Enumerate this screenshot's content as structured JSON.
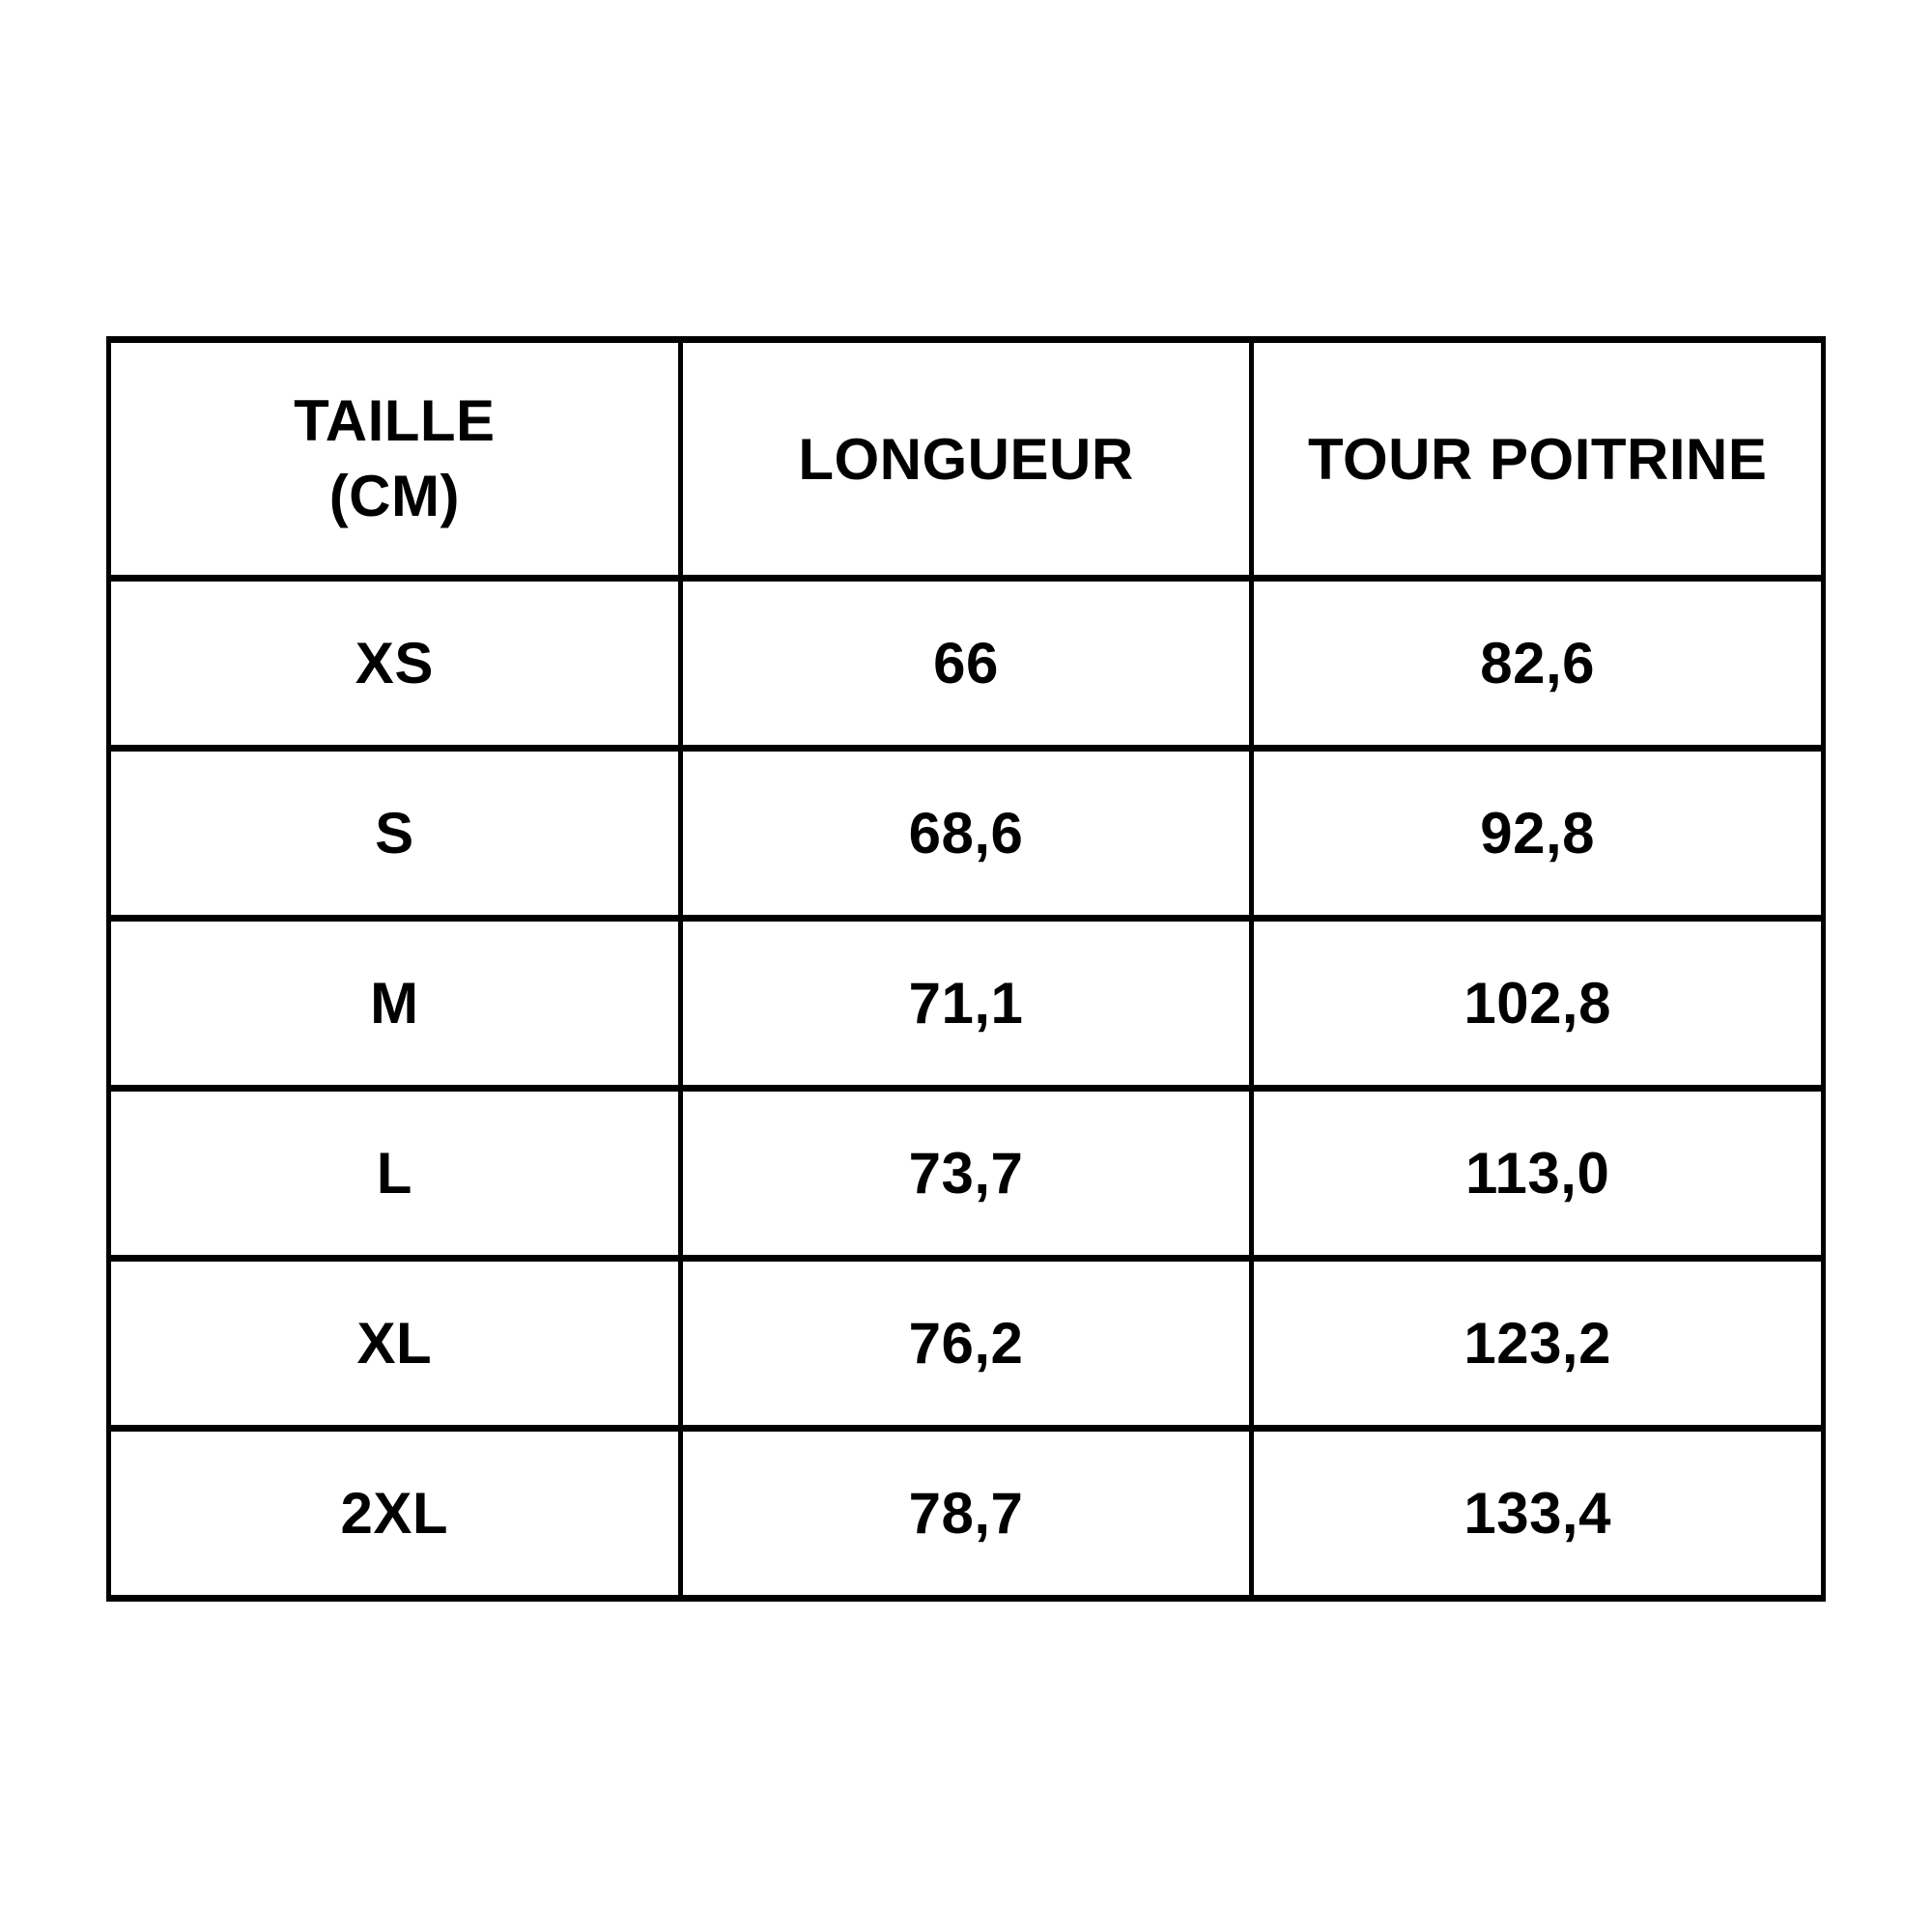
{
  "page": {
    "background_color": "#ffffff"
  },
  "colors": {
    "text": "#000000",
    "border": "#000000",
    "cell_background": "#ffffff"
  },
  "table": {
    "headers": [
      {
        "line1": "TAILLE",
        "line2": "(CM)"
      },
      {
        "line1": "LONGUEUR"
      },
      {
        "line1": "TOUR POITRINE"
      }
    ],
    "rows": [
      {
        "taille": "XS",
        "longueur": "66",
        "tour_poitrine": "82,6"
      },
      {
        "taille": "S",
        "longueur": "68,6",
        "tour_poitrine": "92,8"
      },
      {
        "taille": "M",
        "longueur": "71,1",
        "tour_poitrine": "102,8"
      },
      {
        "taille": "L",
        "longueur": "73,7",
        "tour_poitrine": "113,0"
      },
      {
        "taille": "XL",
        "longueur": "76,2",
        "tour_poitrine": "123,2"
      },
      {
        "taille": "2XL",
        "longueur": "78,7",
        "tour_poitrine": "133,4"
      }
    ]
  },
  "chart_data": {
    "type": "table",
    "title": "",
    "units": "cm",
    "columns": [
      "TAILLE (CM)",
      "LONGUEUR",
      "TOUR POITRINE"
    ],
    "categories": [
      "XS",
      "S",
      "M",
      "L",
      "XL",
      "2XL"
    ],
    "rows": [
      [
        "XS",
        "66",
        "82,6"
      ],
      [
        "S",
        "68,6",
        "92,8"
      ],
      [
        "M",
        "71,1",
        "102,8"
      ],
      [
        "L",
        "73,7",
        "113,0"
      ],
      [
        "XL",
        "76,2",
        "123,2"
      ],
      [
        "2XL",
        "78,7",
        "133,4"
      ]
    ],
    "series": [
      {
        "name": "LONGUEUR",
        "values": [
          66,
          68.6,
          71.1,
          73.7,
          76.2,
          78.7
        ]
      },
      {
        "name": "TOUR POITRINE",
        "values": [
          82.6,
          92.8,
          102.8,
          113.0,
          123.2,
          133.4
        ]
      }
    ]
  }
}
